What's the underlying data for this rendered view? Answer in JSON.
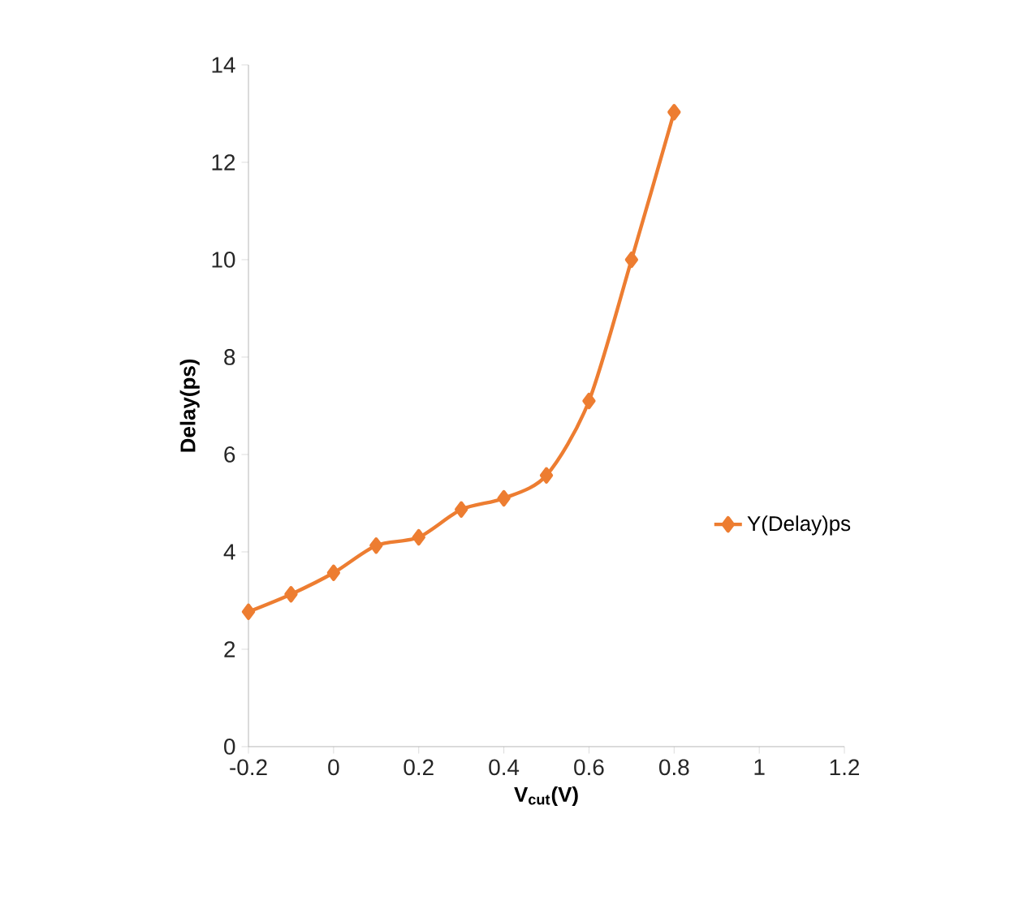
{
  "chart_data": {
    "type": "line",
    "xlabel": "V$_{cut}$(V)",
    "ylabel": "Delay(ps)",
    "x": [
      -0.2,
      -0.1,
      0,
      0.1,
      0.2,
      0.3,
      0.4,
      0.5,
      0.6,
      0.7,
      0.8
    ],
    "series": [
      {
        "name": "Y(Delay)ps",
        "color": "#ed7d31",
        "values": [
          2.77,
          3.13,
          3.57,
          4.13,
          4.3,
          4.87,
          5.1,
          5.57,
          7.1,
          10.0,
          13.03
        ]
      }
    ],
    "xlim": [
      -0.2,
      1.2
    ],
    "xticks": [
      -0.2,
      0,
      0.2,
      0.4,
      0.6,
      0.8,
      1,
      1.2
    ],
    "ylim": [
      0,
      14
    ],
    "yticks": [
      0,
      2,
      4,
      6,
      8,
      10,
      12,
      14
    ],
    "grid": false,
    "legend": "right",
    "marker": "diamond",
    "line_style": "solid"
  }
}
